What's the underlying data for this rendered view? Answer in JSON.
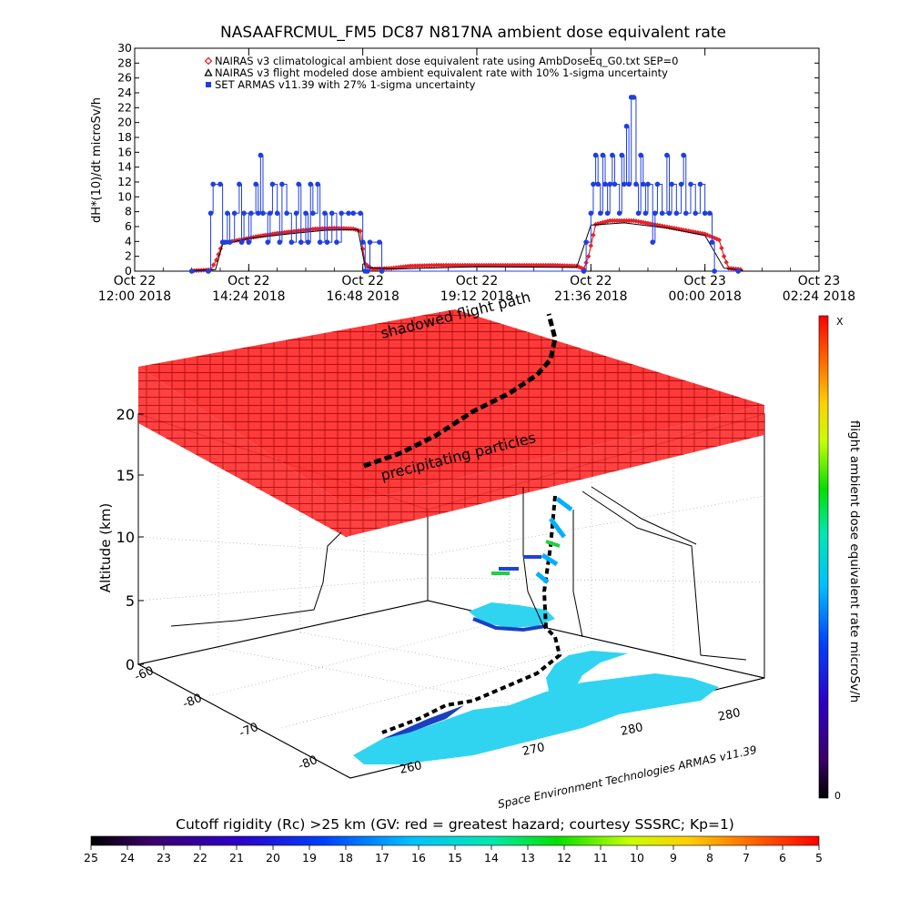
{
  "chart_data": [
    {
      "type": "line",
      "title": "NASAAFRCMUL_FM5 DC87 N817NA ambient dose equivalent rate",
      "ylabel": "dH*(10)/dt microSv/h",
      "ylim": [
        0,
        30
      ],
      "yticks": [
        "0",
        "2",
        "4",
        "6",
        "8",
        "10",
        "12",
        "14",
        "16",
        "18",
        "20",
        "22",
        "24",
        "26",
        "28",
        "30"
      ],
      "xlim_hours": [
        0,
        14.4
      ],
      "xticks": [
        {
          "h": 0,
          "top": "Oct 22",
          "bottom": "12:00 2018"
        },
        {
          "h": 2.4,
          "top": "Oct 22",
          "bottom": "14:24 2018"
        },
        {
          "h": 4.8,
          "top": "Oct 22",
          "bottom": "16:48 2018"
        },
        {
          "h": 7.2,
          "top": "Oct 22",
          "bottom": "19:12 2018"
        },
        {
          "h": 9.6,
          "top": "Oct 22",
          "bottom": "21:36 2018"
        },
        {
          "h": 12.0,
          "top": "Oct 23",
          "bottom": "00:00 2018"
        },
        {
          "h": 14.4,
          "top": "Oct 23",
          "bottom": "02:24 2018"
        }
      ],
      "legend": [
        {
          "marker": "diamond",
          "color": "#e8222a",
          "label": "NAIRAS v3 climatological ambient dose equivalent rate using AmbDoseEq_G0.txt SEP=0"
        },
        {
          "marker": "triangle",
          "color": "#000000",
          "label": "NAIRAS v3 flight modeled dose ambient equivalent rate with 10% 1-sigma uncertainty"
        },
        {
          "marker": "square",
          "color": "#1f3fe0",
          "label": "SET ARMAS v11.39 with 27% 1-sigma uncertainty"
        }
      ],
      "series": [
        {
          "name": "NAIRAS v3 climatological ambient dose equivalent rate using AmbDoseEq_G0.txt SEP=0",
          "color": "#e8222a",
          "points": [
            [
              1.2,
              0.05
            ],
            [
              1.6,
              0.2
            ],
            [
              1.72,
              1.5
            ],
            [
              1.85,
              3.8
            ],
            [
              2.2,
              4.2
            ],
            [
              2.6,
              4.7
            ],
            [
              3.0,
              5.1
            ],
            [
              3.4,
              5.4
            ],
            [
              3.8,
              5.7
            ],
            [
              4.2,
              5.8
            ],
            [
              4.6,
              5.7
            ],
            [
              4.75,
              5.4
            ],
            [
              4.8,
              3.0
            ],
            [
              4.85,
              1.0
            ],
            [
              5.0,
              0.3
            ],
            [
              5.4,
              0.4
            ],
            [
              5.8,
              0.7
            ],
            [
              6.4,
              0.8
            ],
            [
              7.2,
              0.8
            ],
            [
              8.0,
              0.8
            ],
            [
              8.8,
              0.8
            ],
            [
              9.3,
              0.7
            ],
            [
              9.45,
              0.3
            ],
            [
              9.55,
              2.0
            ],
            [
              9.7,
              6.3
            ],
            [
              10.0,
              6.8
            ],
            [
              10.5,
              6.8
            ],
            [
              11.0,
              6.2
            ],
            [
              11.5,
              5.6
            ],
            [
              12.0,
              5.0
            ],
            [
              12.3,
              4.2
            ],
            [
              12.4,
              2.0
            ],
            [
              12.5,
              0.4
            ],
            [
              12.8,
              0.2
            ]
          ]
        },
        {
          "name": "NAIRAS v3 flight modeled dose ambient equivalent rate with 10% 1-sigma uncertainty",
          "color": "#000000",
          "points": [
            [
              1.2,
              0.1
            ],
            [
              1.7,
              0.2
            ],
            [
              1.85,
              3.6
            ],
            [
              2.4,
              4.4
            ],
            [
              3.2,
              5.0
            ],
            [
              4.0,
              5.5
            ],
            [
              4.7,
              5.6
            ],
            [
              4.85,
              0.5
            ],
            [
              5.5,
              0.3
            ],
            [
              7.2,
              0.6
            ],
            [
              9.3,
              0.5
            ],
            [
              9.6,
              6.2
            ],
            [
              10.3,
              6.5
            ],
            [
              11.2,
              5.8
            ],
            [
              12.0,
              4.8
            ],
            [
              12.4,
              0.4
            ],
            [
              12.8,
              0.1
            ]
          ]
        },
        {
          "name": "SET ARMAS v11.39 with 27% 1-sigma uncertainty",
          "color": "#1f3fe0",
          "points": [
            [
              1.2,
              0
            ],
            [
              1.55,
              0
            ],
            [
              1.6,
              7.8
            ],
            [
              1.65,
              11.7
            ],
            [
              1.8,
              11.7
            ],
            [
              1.85,
              3.9
            ],
            [
              1.9,
              3.9
            ],
            [
              1.95,
              7.8
            ],
            [
              2.0,
              3.9
            ],
            [
              2.1,
              7.8
            ],
            [
              2.2,
              11.7
            ],
            [
              2.25,
              3.9
            ],
            [
              2.3,
              7.8
            ],
            [
              2.4,
              3.9
            ],
            [
              2.45,
              7.8
            ],
            [
              2.55,
              11.7
            ],
            [
              2.6,
              7.8
            ],
            [
              2.65,
              15.6
            ],
            [
              2.7,
              7.8
            ],
            [
              2.8,
              3.9
            ],
            [
              2.85,
              7.8
            ],
            [
              2.9,
              11.7
            ],
            [
              3.0,
              7.8
            ],
            [
              3.05,
              3.9
            ],
            [
              3.1,
              11.7
            ],
            [
              3.2,
              7.8
            ],
            [
              3.3,
              3.9
            ],
            [
              3.4,
              7.8
            ],
            [
              3.45,
              11.7
            ],
            [
              3.5,
              3.9
            ],
            [
              3.6,
              7.8
            ],
            [
              3.65,
              3.9
            ],
            [
              3.7,
              11.7
            ],
            [
              3.75,
              7.8
            ],
            [
              3.85,
              11.7
            ],
            [
              3.9,
              3.9
            ],
            [
              4.0,
              7.8
            ],
            [
              4.05,
              3.9
            ],
            [
              4.15,
              7.8
            ],
            [
              4.25,
              3.9
            ],
            [
              4.35,
              7.8
            ],
            [
              4.5,
              7.8
            ],
            [
              4.6,
              7.8
            ],
            [
              4.75,
              7.8
            ],
            [
              4.8,
              3.9
            ],
            [
              4.85,
              0
            ],
            [
              4.9,
              0
            ],
            [
              4.95,
              3.9
            ],
            [
              5.15,
              3.9
            ],
            [
              5.2,
              0
            ],
            [
              9.45,
              0
            ],
            [
              9.5,
              3.9
            ],
            [
              9.6,
              7.8
            ],
            [
              9.65,
              11.7
            ],
            [
              9.7,
              15.6
            ],
            [
              9.75,
              11.7
            ],
            [
              9.8,
              7.8
            ],
            [
              9.85,
              15.6
            ],
            [
              9.9,
              11.7
            ],
            [
              9.95,
              7.8
            ],
            [
              10.0,
              11.7
            ],
            [
              10.05,
              15.6
            ],
            [
              10.1,
              11.7
            ],
            [
              10.2,
              7.8
            ],
            [
              10.25,
              15.6
            ],
            [
              10.3,
              11.7
            ],
            [
              10.35,
              19.5
            ],
            [
              10.4,
              11.7
            ],
            [
              10.45,
              23.4
            ],
            [
              10.5,
              23.4
            ],
            [
              10.55,
              11.7
            ],
            [
              10.6,
              7.8
            ],
            [
              10.65,
              15.6
            ],
            [
              10.7,
              11.7
            ],
            [
              10.75,
              7.8
            ],
            [
              10.8,
              11.7
            ],
            [
              10.9,
              3.9
            ],
            [
              10.95,
              7.8
            ],
            [
              11.0,
              11.7
            ],
            [
              11.1,
              7.8
            ],
            [
              11.2,
              15.6
            ],
            [
              11.25,
              7.8
            ],
            [
              11.3,
              11.7
            ],
            [
              11.4,
              7.8
            ],
            [
              11.5,
              11.7
            ],
            [
              11.55,
              15.6
            ],
            [
              11.6,
              7.8
            ],
            [
              11.7,
              11.7
            ],
            [
              11.8,
              7.8
            ],
            [
              11.9,
              11.7
            ],
            [
              12.0,
              7.8
            ],
            [
              12.1,
              7.8
            ],
            [
              12.15,
              3.9
            ],
            [
              12.2,
              0
            ],
            [
              12.7,
              0
            ]
          ]
        }
      ]
    },
    {
      "type": "surface3d",
      "ylabel": "Altitude (km)",
      "zticks": [
        "0",
        "5",
        "10",
        "15",
        "20"
      ],
      "lat_ticks": [
        "-60",
        "-80",
        "-70",
        "-80"
      ],
      "lon_ticks": [
        "260",
        "270",
        "280",
        "280"
      ],
      "annotations": [
        "shadowed flight path",
        "precipitating particles"
      ],
      "credit": "Space Environment Technologies ARMAS v11.39",
      "colorbar": {
        "label": "flight ambient dose equivalent rate microSv/h",
        "top_label": "X",
        "bottom_label": "0"
      }
    },
    {
      "type": "colorbar",
      "title": "Cutoff rigidity (Rc) >25 km (GV: red = greatest hazard; courtesy SSSRC; Kp=1)",
      "ticks": [
        "25",
        "24",
        "23",
        "22",
        "21",
        "20",
        "19",
        "18",
        "17",
        "16",
        "15",
        "14",
        "13",
        "12",
        "11",
        "10",
        "9",
        "8",
        "7",
        "6",
        "5"
      ]
    }
  ]
}
